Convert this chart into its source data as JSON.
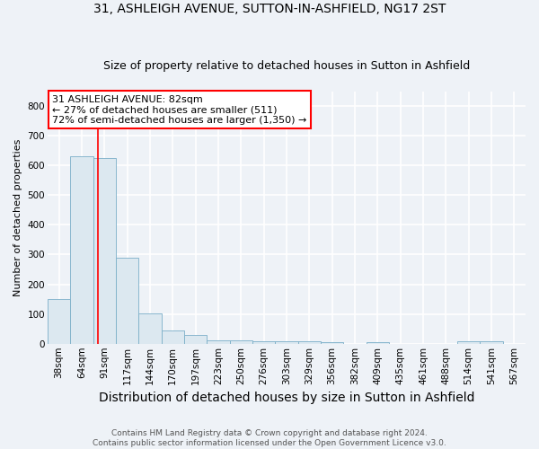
{
  "title": "31, ASHLEIGH AVENUE, SUTTON-IN-ASHFIELD, NG17 2ST",
  "subtitle": "Size of property relative to detached houses in Sutton in Ashfield",
  "xlabel": "Distribution of detached houses by size in Sutton in Ashfield",
  "ylabel": "Number of detached properties",
  "categories": [
    "38sqm",
    "64sqm",
    "91sqm",
    "117sqm",
    "144sqm",
    "170sqm",
    "197sqm",
    "223sqm",
    "250sqm",
    "276sqm",
    "303sqm",
    "329sqm",
    "356sqm",
    "382sqm",
    "409sqm",
    "435sqm",
    "461sqm",
    "488sqm",
    "514sqm",
    "541sqm",
    "567sqm"
  ],
  "values": [
    150,
    630,
    625,
    290,
    103,
    45,
    30,
    10,
    10,
    8,
    8,
    8,
    5,
    0,
    5,
    0,
    0,
    0,
    8,
    8,
    0
  ],
  "bar_fill_color": "#dce8f0",
  "bar_edge_color": "#7bafc8",
  "red_line_x": 1.73,
  "annotation_text": "31 ASHLEIGH AVENUE: 82sqm\n← 27% of detached houses are smaller (511)\n72% of semi-detached houses are larger (1,350) →",
  "annotation_box_facecolor": "white",
  "annotation_box_edgecolor": "red",
  "ylim": [
    0,
    850
  ],
  "yticks": [
    0,
    100,
    200,
    300,
    400,
    500,
    600,
    700,
    800
  ],
  "footer_text": "Contains HM Land Registry data © Crown copyright and database right 2024.\nContains public sector information licensed under the Open Government Licence v3.0.",
  "background_color": "#eef2f7",
  "grid_color": "white",
  "title_fontsize": 10,
  "subtitle_fontsize": 9,
  "xlabel_fontsize": 10,
  "ylabel_fontsize": 8,
  "tick_fontsize": 7.5,
  "footer_fontsize": 6.5,
  "annotation_fontsize": 8
}
